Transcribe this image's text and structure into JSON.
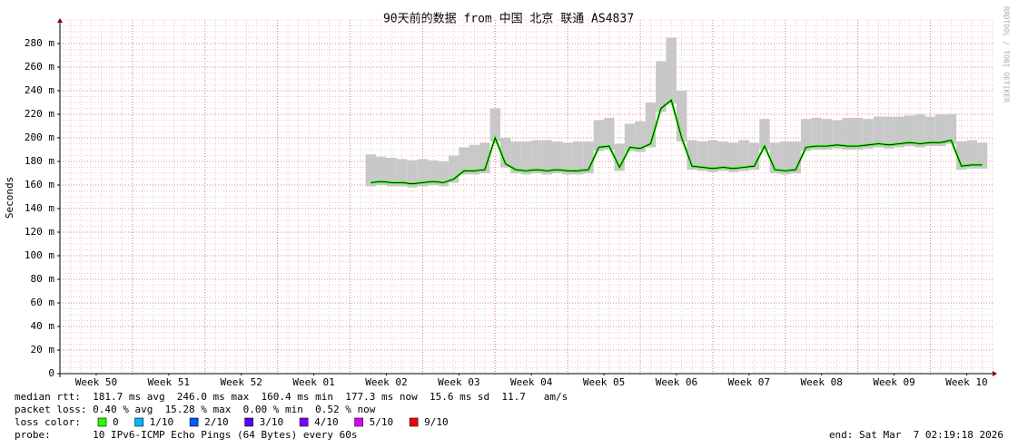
{
  "chart_data": {
    "type": "line",
    "title": "90天前的数据 from 中国 北京 联通 AS4837",
    "y_label": "Seconds",
    "watermark": "RRDTOOL / TOBI OETIKER",
    "xlim": [
      0,
      90
    ],
    "xticks": [
      {
        "value": 3.5,
        "label": "Week 50"
      },
      {
        "value": 10.5,
        "label": "Week 51"
      },
      {
        "value": 17.5,
        "label": "Week 52"
      },
      {
        "value": 24.5,
        "label": "Week 01"
      },
      {
        "value": 31.5,
        "label": "Week 02"
      },
      {
        "value": 38.5,
        "label": "Week 03"
      },
      {
        "value": 45.5,
        "label": "Week 04"
      },
      {
        "value": 52.5,
        "label": "Week 05"
      },
      {
        "value": 59.5,
        "label": "Week 06"
      },
      {
        "value": 66.5,
        "label": "Week 07"
      },
      {
        "value": 73.5,
        "label": "Week 08"
      },
      {
        "value": 80.5,
        "label": "Week 09"
      },
      {
        "value": 87.5,
        "label": "Week 10"
      }
    ],
    "ylim": [
      0,
      300
    ],
    "yticks": [
      0,
      {
        "value": 20,
        "label": "20 m"
      },
      {
        "value": 40,
        "label": "40 m"
      },
      {
        "value": 60,
        "label": "60 m"
      },
      {
        "value": 80,
        "label": "80 m"
      },
      {
        "value": 100,
        "label": "100 m"
      },
      {
        "value": 120,
        "label": "120 m"
      },
      {
        "value": 140,
        "label": "140 m"
      },
      {
        "value": 160,
        "label": "160 m"
      },
      {
        "value": 180,
        "label": "180 m"
      },
      {
        "value": 200,
        "label": "200 m"
      },
      {
        "value": 220,
        "label": "220 m"
      },
      {
        "value": 240,
        "label": "240 m"
      },
      {
        "value": 260,
        "label": "260 m"
      },
      {
        "value": 280,
        "label": "280 m"
      }
    ],
    "grid": true,
    "x": [
      30,
      31,
      32,
      33,
      34,
      35,
      36,
      37,
      38,
      39,
      40,
      41,
      42,
      43,
      44,
      45,
      46,
      47,
      48,
      49,
      50,
      51,
      52,
      53,
      54,
      55,
      56,
      57,
      58,
      59,
      60,
      61,
      62,
      63,
      64,
      65,
      66,
      67,
      68,
      69,
      70,
      71,
      72,
      73,
      74,
      75,
      76,
      77,
      78,
      79,
      80,
      81,
      82,
      83,
      84,
      85,
      86,
      87,
      88,
      89
    ],
    "values": [
      162,
      163,
      162,
      162,
      161,
      162,
      163,
      162,
      165,
      172,
      172,
      173,
      200,
      178,
      173,
      172,
      173,
      172,
      173,
      172,
      172,
      173,
      192,
      193,
      175,
      192,
      191,
      195,
      225,
      232,
      200,
      176,
      175,
      174,
      175,
      174,
      175,
      176,
      193,
      173,
      172,
      173,
      192,
      193,
      193,
      194,
      193,
      193,
      194,
      195,
      194,
      195,
      196,
      195,
      196,
      196,
      198,
      176,
      177,
      177
    ],
    "smoke_high": [
      186,
      184,
      183,
      182,
      181,
      182,
      181,
      180,
      185,
      192,
      194,
      196,
      225,
      200,
      197,
      197,
      198,
      198,
      197,
      196,
      197,
      197,
      215,
      217,
      195,
      212,
      214,
      230,
      265,
      285,
      240,
      198,
      197,
      198,
      197,
      196,
      198,
      196,
      216,
      196,
      197,
      197,
      216,
      217,
      216,
      215,
      217,
      217,
      216,
      218,
      218,
      218,
      219,
      220,
      218,
      220,
      220,
      197,
      198,
      196
    ],
    "color": "#26ff00",
    "smoke_color": "#c8c8c8",
    "stats_lines": [
      "median rtt:  181.7 ms avg  246.0 ms max  160.4 ms min  177.3 ms now  15.6 ms sd  11.7   am/s",
      "packet loss: 0.40 % avg  15.28 % max  0.00 % min  0.52 % now"
    ],
    "loss_label": "loss color:",
    "loss_colors": [
      {
        "name": "0",
        "color": "#26ff00"
      },
      {
        "name": "1/10",
        "color": "#00b8ff"
      },
      {
        "name": "2/10",
        "color": "#0059ff"
      },
      {
        "name": "3/10",
        "color": "#5e00ff"
      },
      {
        "name": "4/10",
        "color": "#7e00ff"
      },
      {
        "name": "5/10",
        "color": "#dd00ff"
      },
      {
        "name": "9/10",
        "color": "#ff0000"
      }
    ],
    "probe": "probe:       10 IPv6-ICMP Echo Pings (64 Bytes) every 60s",
    "end": "end: Sat Mar  7 02:19:18 2026"
  }
}
